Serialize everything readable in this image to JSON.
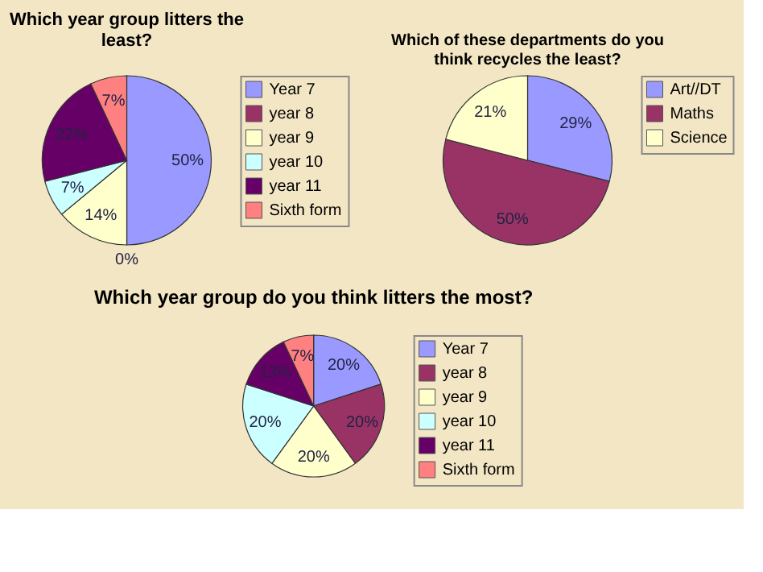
{
  "chart_data": [
    {
      "type": "pie",
      "title": "Which year group litters the least?",
      "categories": [
        "Year 7",
        "year 8",
        "year 9",
        "year 10",
        "year 11",
        "Sixth form"
      ],
      "values": [
        50,
        0,
        14,
        7,
        22,
        7
      ],
      "value_labels": [
        "50%",
        "0%",
        "14%",
        "7%",
        "22%",
        "7%"
      ],
      "colors": [
        "#9999ff",
        "#993366",
        "#ffffcc",
        "#ccffff",
        "#660066",
        "#ff8080"
      ],
      "legend": "right"
    },
    {
      "type": "pie",
      "title": "Which of these departments do you think recycles the least?",
      "categories": [
        "Art//DT",
        "Maths",
        "Science"
      ],
      "values": [
        29,
        50,
        21
      ],
      "value_labels": [
        "29%",
        "50%",
        "21%"
      ],
      "colors": [
        "#9999ff",
        "#993366",
        "#ffffcc"
      ],
      "legend": "right"
    },
    {
      "type": "pie",
      "title": "Which year group do you think litters the most?",
      "categories": [
        "Year 7",
        "year 8",
        "year 9",
        "year 10",
        "year 11",
        "Sixth form"
      ],
      "values": [
        20,
        20,
        20,
        20,
        13,
        7
      ],
      "value_labels": [
        "20%",
        "20%",
        "20%",
        "20%",
        "13%",
        "7%"
      ],
      "colors": [
        "#9999ff",
        "#993366",
        "#ffffcc",
        "#ccffff",
        "#660066",
        "#ff8080"
      ],
      "legend": "right"
    }
  ]
}
